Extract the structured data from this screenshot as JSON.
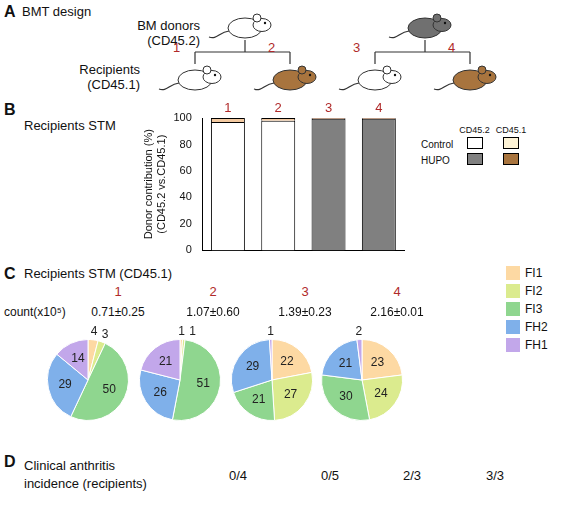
{
  "panel_a": {
    "letter": "A",
    "title": "BMT design",
    "donor_label": [
      "BM donors",
      "(CD45.2)"
    ],
    "recipient_label": [
      "Recipients",
      "(CD45.1)"
    ],
    "donors": [
      {
        "color": "#ffffff"
      },
      {
        "color": "#707070"
      }
    ],
    "recipients": [
      {
        "label": "1",
        "color": "#ffffff"
      },
      {
        "label": "2",
        "color": "#a8743e"
      },
      {
        "label": "3",
        "color": "#ffffff"
      },
      {
        "label": "4",
        "color": "#a8743e"
      }
    ]
  },
  "panel_b": {
    "letter": "B"
  },
  "panel_c": {
    "letter": "C",
    "title": "Recipients STM (CD45.1)",
    "count_label": "count(x10⁵)",
    "legend": "right"
  },
  "panel_d": {
    "letter": "D",
    "title": [
      "Clinical anthritis",
      "incidence (recipients)"
    ],
    "values": [
      "0/4",
      "0/5",
      "2/3",
      "3/3"
    ]
  },
  "chart_data": [
    {
      "type": "bar",
      "title": "Recipients STM",
      "categories": [
        "1",
        "2",
        "3",
        "4"
      ],
      "y_label": [
        "Donor contribution (%)",
        "(CD45.2 vs.CD45.1)"
      ],
      "stacked": true,
      "ylim": [
        0,
        100
      ],
      "yticks": [
        0,
        20,
        40,
        60,
        80,
        100
      ],
      "grid": false,
      "tick_labels": "y",
      "legend": "right",
      "series": [
        {
          "name": "CD45.2",
          "values": [
            97,
            98,
            99.5,
            99.5
          ],
          "colors": [
            "#ffffff",
            "#ffffff",
            "#808080",
            "#808080"
          ]
        },
        {
          "name": "CD45.1",
          "values": [
            3,
            2,
            0.5,
            0.5
          ],
          "colors": [
            "#f3c9a0",
            "#f3c9a0",
            "#c0652a",
            "#c0652a"
          ]
        }
      ],
      "legend_rows": [
        {
          "name": "Control",
          "colors": [
            "#ffffff",
            "#fdf3d6"
          ]
        },
        {
          "name": "HUPO",
          "colors": [
            "#808080",
            "#a8743e"
          ]
        }
      ]
    },
    {
      "type": "pie",
      "title": "1",
      "count": "0.71±0.25",
      "data_labels": true,
      "categories": [
        "FI1",
        "FI2",
        "FI3",
        "FH2",
        "FH1"
      ],
      "values": [
        4,
        3,
        50,
        29,
        14
      ],
      "colors": [
        "#fdd9a3",
        "#dbeb8e",
        "#8fd68f",
        "#7fb0ea",
        "#c2a7ea"
      ]
    },
    {
      "type": "pie",
      "title": "2",
      "count": "1.07±0.60",
      "data_labels": true,
      "categories": [
        "FI1",
        "FI2",
        "FI3",
        "FH2",
        "FH1"
      ],
      "values": [
        1,
        1,
        51,
        26,
        21
      ],
      "colors": [
        "#fdd9a3",
        "#dbeb8e",
        "#8fd68f",
        "#7fb0ea",
        "#c2a7ea"
      ]
    },
    {
      "type": "pie",
      "title": "3",
      "count": "1.39±0.23",
      "data_labels": true,
      "categories": [
        "FI1",
        "FI2",
        "FI3",
        "FH2",
        "FH1"
      ],
      "values": [
        22,
        27,
        21,
        29,
        1
      ],
      "colors": [
        "#fdd9a3",
        "#dbeb8e",
        "#8fd68f",
        "#7fb0ea",
        "#c2a7ea"
      ]
    },
    {
      "type": "pie",
      "title": "4",
      "count": "2.16±0.01",
      "data_labels": true,
      "categories": [
        "FI1",
        "FI2",
        "FI3",
        "FH2",
        "FH1"
      ],
      "values": [
        23,
        24,
        30,
        21,
        2
      ],
      "colors": [
        "#fdd9a3",
        "#dbeb8e",
        "#8fd68f",
        "#7fb0ea",
        "#c2a7ea"
      ]
    }
  ]
}
